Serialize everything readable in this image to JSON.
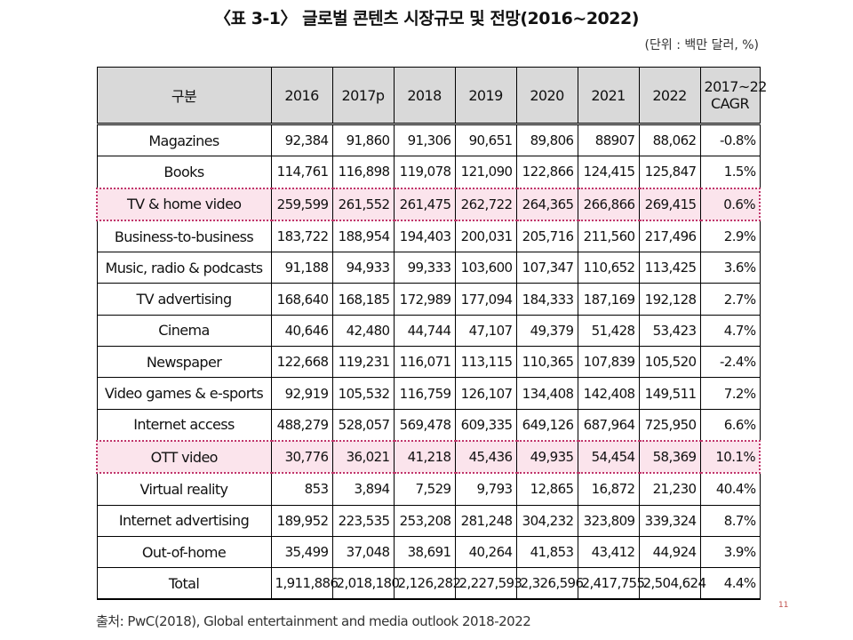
{
  "title": "〈표 3-1〉 글로벌 콘텐츠 시장규모 및 전망(2016~2022)",
  "unit": "(단위 : 백만 달러, %)",
  "table": {
    "header": [
      "구분",
      "2016",
      "2017p",
      "2018",
      "2019",
      "2020",
      "2021",
      "2022",
      "2017~22 CAGR"
    ],
    "rows": [
      {
        "label": "Magazines",
        "values": [
          "92,384",
          "91,860",
          "91,306",
          "90,651",
          "89,806",
          "88907",
          "88,062",
          "-0.8%"
        ],
        "highlight": false
      },
      {
        "label": "Books",
        "values": [
          "114,761",
          "116,898",
          "119,078",
          "121,090",
          "122,866",
          "124,415",
          "125,847",
          "1.5%"
        ],
        "highlight": false
      },
      {
        "label": "TV & home video",
        "values": [
          "259,599",
          "261,552",
          "261,475",
          "262,722",
          "264,365",
          "266,866",
          "269,415",
          "0.6%"
        ],
        "highlight": true
      },
      {
        "label": "Business-to-business",
        "values": [
          "183,722",
          "188,954",
          "194,403",
          "200,031",
          "205,716",
          "211,560",
          "217,496",
          "2.9%"
        ],
        "highlight": false
      },
      {
        "label": "Music, radio & podcasts",
        "values": [
          "91,188",
          "94,933",
          "99,333",
          "103,600",
          "107,347",
          "110,652",
          "113,425",
          "3.6%"
        ],
        "highlight": false
      },
      {
        "label": "TV advertising",
        "values": [
          "168,640",
          "168,185",
          "172,989",
          "177,094",
          "184,333",
          "187,169",
          "192,128",
          "2.7%"
        ],
        "highlight": false
      },
      {
        "label": "Cinema",
        "values": [
          "40,646",
          "42,480",
          "44,744",
          "47,107",
          "49,379",
          "51,428",
          "53,423",
          "4.7%"
        ],
        "highlight": false
      },
      {
        "label": "Newspaper",
        "values": [
          "122,668",
          "119,231",
          "116,071",
          "113,115",
          "110,365",
          "107,839",
          "105,520",
          "-2.4%"
        ],
        "highlight": false
      },
      {
        "label": "Video games & e-sports",
        "values": [
          "92,919",
          "105,532",
          "116,759",
          "126,107",
          "134,408",
          "142,408",
          "149,511",
          "7.2%"
        ],
        "highlight": false
      },
      {
        "label": "Internet access",
        "values": [
          "488,279",
          "528,057",
          "569,478",
          "609,335",
          "649,126",
          "687,964",
          "725,950",
          "6.6%"
        ],
        "highlight": false
      },
      {
        "label": "OTT video",
        "values": [
          "30,776",
          "36,021",
          "41,218",
          "45,436",
          "49,935",
          "54,454",
          "58,369",
          "10.1%"
        ],
        "highlight": true
      },
      {
        "label": "Virtual reality",
        "values": [
          "853",
          "3,894",
          "7,529",
          "9,793",
          "12,865",
          "16,872",
          "21,230",
          "40.4%"
        ],
        "highlight": false
      },
      {
        "label": "Internet advertising",
        "values": [
          "189,952",
          "223,535",
          "253,208",
          "281,248",
          "304,232",
          "323,809",
          "339,324",
          "8.7%"
        ],
        "highlight": false
      },
      {
        "label": "Out-of-home",
        "values": [
          "35,499",
          "37,048",
          "38,691",
          "40,264",
          "41,853",
          "43,412",
          "44,924",
          "3.9%"
        ],
        "highlight": false
      },
      {
        "label": "Total",
        "values": [
          "1,911,886",
          "2,018,180",
          "2,126,282",
          "2,227,593",
          "2,326,596",
          "2,417,755",
          "2,504,624",
          "4.4%"
        ],
        "highlight": false
      }
    ]
  },
  "source": "출처: PwC(2018), Global entertainment and media outlook 2018-2022",
  "page_number": "11",
  "colors": {
    "header_bg": "#d9d9d9",
    "highlight_bg": "#fbe4ec",
    "highlight_border": "#c0356a"
  }
}
